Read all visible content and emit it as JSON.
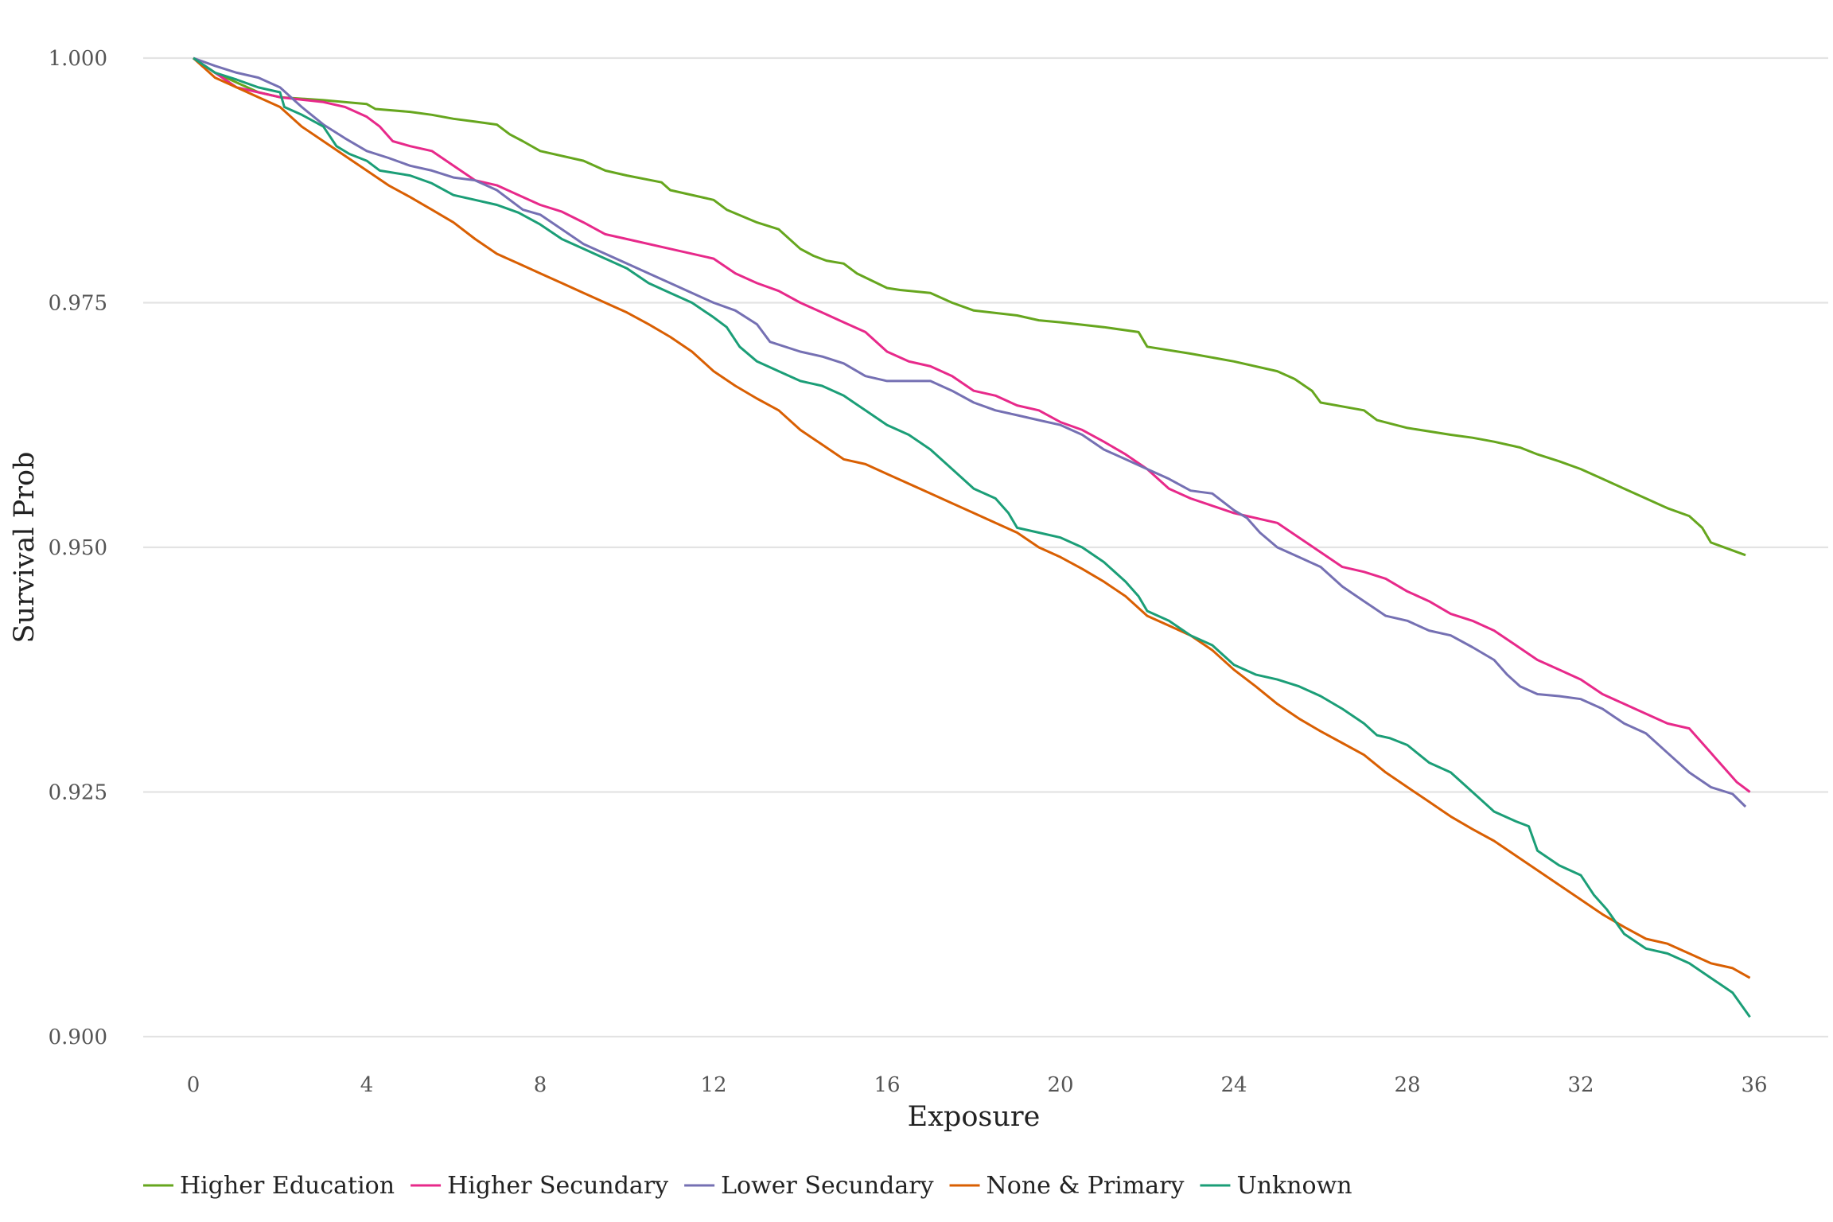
{
  "chart_data": {
    "type": "line",
    "xlabel": "Exposure",
    "ylabel": "Survival Prob",
    "xlim": [
      0,
      36
    ],
    "ylim": [
      0.9,
      1.0
    ],
    "x_ticks": [
      0,
      4,
      8,
      12,
      16,
      20,
      24,
      28,
      32,
      36
    ],
    "y_ticks": [
      0.9,
      0.925,
      0.95,
      0.975,
      1.0
    ],
    "x_tick_labels": [
      "0",
      "4",
      "8",
      "12",
      "16",
      "20",
      "24",
      "28",
      "32",
      "36"
    ],
    "y_tick_labels": [
      "0.900",
      "0.925",
      "0.950",
      "0.975",
      "1.000"
    ],
    "grid": "horizontal",
    "legend_position": "bottom-left",
    "series": [
      {
        "name": "Higher Education",
        "color": "#66a61e",
        "x": [
          0,
          0.5,
          1,
          1.5,
          2,
          3,
          4,
          4.2,
          5,
          5.5,
          6,
          6.5,
          7,
          7.3,
          7.6,
          8,
          9,
          9.5,
          10,
          10.8,
          11,
          12,
          12.3,
          13,
          13.5,
          14,
          14.3,
          14.6,
          15,
          15.3,
          16,
          16.3,
          17,
          17.5,
          18,
          19,
          19.5,
          20,
          21,
          21.8,
          22,
          23,
          24,
          25,
          25.4,
          25.8,
          26,
          27,
          27.3,
          28,
          29,
          29.5,
          30,
          30.6,
          31,
          31.5,
          32,
          32.5,
          33,
          33.5,
          34,
          34.5,
          34.8,
          35,
          35.8
        ],
        "y": [
          1.0,
          0.9985,
          0.9975,
          0.9965,
          0.996,
          0.9957,
          0.9953,
          0.9948,
          0.9945,
          0.9942,
          0.9938,
          0.9935,
          0.9932,
          0.9922,
          0.9915,
          0.9905,
          0.9895,
          0.9885,
          0.988,
          0.9873,
          0.9865,
          0.9855,
          0.9845,
          0.9832,
          0.9825,
          0.9805,
          0.9798,
          0.9793,
          0.979,
          0.978,
          0.9765,
          0.9763,
          0.976,
          0.975,
          0.9742,
          0.9737,
          0.9732,
          0.973,
          0.9725,
          0.972,
          0.9705,
          0.9698,
          0.969,
          0.968,
          0.9672,
          0.966,
          0.9648,
          0.964,
          0.963,
          0.9622,
          0.9615,
          0.9612,
          0.9608,
          0.9602,
          0.9595,
          0.9588,
          0.958,
          0.957,
          0.956,
          0.955,
          0.954,
          0.9532,
          0.952,
          0.9505,
          0.9492
        ]
      },
      {
        "name": "Higher Secundary",
        "color": "#e7298a",
        "x": [
          0,
          1,
          2,
          3,
          3.5,
          4,
          4.3,
          4.6,
          5,
          5.5,
          6,
          6.5,
          7,
          7.5,
          8,
          8.5,
          9,
          9.5,
          10,
          11,
          12,
          12.5,
          13,
          13.5,
          14,
          14.5,
          15,
          15.5,
          16,
          16.5,
          17,
          17.5,
          18,
          18.5,
          19,
          19.5,
          20,
          20.5,
          21,
          21.5,
          22,
          22.5,
          23,
          24,
          25,
          25.5,
          26,
          26.5,
          27,
          27.5,
          28,
          28.5,
          29,
          29.5,
          30,
          30.5,
          31,
          31.5,
          32,
          32.5,
          33,
          33.5,
          34,
          34.5,
          35,
          35.3,
          35.6,
          35.9
        ],
        "y": [
          1.0,
          0.997,
          0.996,
          0.9955,
          0.995,
          0.994,
          0.993,
          0.9915,
          0.991,
          0.9905,
          0.989,
          0.9875,
          0.987,
          0.986,
          0.985,
          0.9843,
          0.9832,
          0.982,
          0.9815,
          0.9805,
          0.9795,
          0.978,
          0.977,
          0.9762,
          0.975,
          0.974,
          0.973,
          0.972,
          0.97,
          0.969,
          0.9685,
          0.9675,
          0.966,
          0.9655,
          0.9645,
          0.964,
          0.9628,
          0.962,
          0.9608,
          0.9595,
          0.958,
          0.956,
          0.955,
          0.9535,
          0.9525,
          0.951,
          0.9495,
          0.948,
          0.9475,
          0.9468,
          0.9455,
          0.9445,
          0.9432,
          0.9425,
          0.9415,
          0.94,
          0.9385,
          0.9375,
          0.9365,
          0.935,
          0.934,
          0.933,
          0.932,
          0.9315,
          0.929,
          0.9275,
          0.926,
          0.925
        ]
      },
      {
        "name": "Lower Secundary",
        "color": "#7570b3",
        "x": [
          0,
          0.5,
          1,
          1.5,
          2,
          2.5,
          3,
          3.5,
          4,
          4.5,
          5,
          5.5,
          6,
          6.5,
          7,
          7.3,
          7.6,
          8,
          8.5,
          9,
          9.5,
          10,
          10.5,
          11,
          11.5,
          12,
          12.5,
          13,
          13.3,
          14,
          14.5,
          15,
          15.5,
          16,
          17,
          17.5,
          18,
          18.5,
          19,
          19.5,
          20,
          20.5,
          21,
          21.5,
          22,
          22.5,
          23,
          23.5,
          24,
          24.3,
          24.6,
          25,
          25.5,
          26,
          26.5,
          27,
          27.5,
          28,
          28.5,
          29,
          29.5,
          30,
          30.3,
          30.6,
          31,
          31.5,
          32,
          32.5,
          33,
          33.5,
          34,
          34.5,
          35,
          35.5,
          35.8
        ],
        "y": [
          1.0,
          0.9992,
          0.9985,
          0.998,
          0.997,
          0.995,
          0.9932,
          0.9918,
          0.9905,
          0.9898,
          0.989,
          0.9885,
          0.9878,
          0.9875,
          0.9865,
          0.9855,
          0.9845,
          0.984,
          0.9825,
          0.981,
          0.98,
          0.979,
          0.978,
          0.977,
          0.976,
          0.975,
          0.9742,
          0.9728,
          0.971,
          0.97,
          0.9695,
          0.9688,
          0.9675,
          0.967,
          0.967,
          0.966,
          0.9648,
          0.964,
          0.9635,
          0.963,
          0.9625,
          0.9615,
          0.96,
          0.959,
          0.958,
          0.957,
          0.9558,
          0.9555,
          0.9538,
          0.953,
          0.9515,
          0.95,
          0.949,
          0.948,
          0.946,
          0.9445,
          0.943,
          0.9425,
          0.9415,
          0.941,
          0.9398,
          0.9385,
          0.937,
          0.9358,
          0.935,
          0.9348,
          0.9345,
          0.9335,
          0.932,
          0.931,
          0.929,
          0.927,
          0.9255,
          0.9248,
          0.9235
        ]
      },
      {
        "name": "None & Primary",
        "color": "#d95f02",
        "x": [
          0,
          0.5,
          1,
          1.5,
          2,
          2.5,
          3,
          3.5,
          4,
          4.5,
          5,
          5.5,
          6,
          6.5,
          7,
          7.5,
          8,
          8.5,
          9,
          9.5,
          10,
          10.5,
          11,
          11.5,
          12,
          12.5,
          13,
          13.5,
          14,
          14.5,
          15,
          15.5,
          16,
          16.5,
          17,
          17.5,
          18,
          18.5,
          19,
          19.5,
          20,
          20.5,
          21,
          21.5,
          22,
          22.5,
          23,
          23.5,
          24,
          24.5,
          25,
          25.5,
          26,
          26.5,
          27,
          27.5,
          28,
          28.5,
          29,
          29.5,
          30,
          30.5,
          31,
          31.5,
          32,
          32.5,
          33,
          33.5,
          34,
          34.5,
          35,
          35.5,
          35.9
        ],
        "y": [
          1.0,
          0.998,
          0.997,
          0.996,
          0.995,
          0.993,
          0.9915,
          0.99,
          0.9885,
          0.987,
          0.9858,
          0.9845,
          0.9832,
          0.9815,
          0.98,
          0.979,
          0.978,
          0.977,
          0.976,
          0.975,
          0.974,
          0.9728,
          0.9715,
          0.97,
          0.968,
          0.9665,
          0.9652,
          0.964,
          0.962,
          0.9605,
          0.959,
          0.9585,
          0.9575,
          0.9565,
          0.9555,
          0.9545,
          0.9535,
          0.9525,
          0.9515,
          0.95,
          0.949,
          0.9478,
          0.9465,
          0.945,
          0.943,
          0.942,
          0.941,
          0.9395,
          0.9375,
          0.9358,
          0.934,
          0.9325,
          0.9312,
          0.93,
          0.9288,
          0.927,
          0.9255,
          0.924,
          0.9225,
          0.9212,
          0.92,
          0.9185,
          0.917,
          0.9155,
          0.914,
          0.9125,
          0.9112,
          0.91,
          0.9095,
          0.9085,
          0.9075,
          0.907,
          0.906
        ]
      },
      {
        "name": "Unknown",
        "color": "#1b9e77",
        "x": [
          0,
          0.5,
          1,
          1.5,
          2,
          2.1,
          2.5,
          3,
          3.3,
          3.6,
          4,
          4.3,
          5,
          5.5,
          6,
          6.5,
          7,
          7.5,
          8,
          8.5,
          9,
          9.5,
          10,
          10.5,
          11,
          11.5,
          12,
          12.3,
          12.6,
          13,
          13.5,
          14,
          14.5,
          15,
          15.5,
          16,
          16.5,
          17,
          17.5,
          18,
          18.5,
          18.8,
          19,
          19.5,
          20,
          20.5,
          21,
          21.5,
          21.8,
          22,
          22.5,
          23,
          23.5,
          24,
          24.5,
          25,
          25.5,
          26,
          26.5,
          27,
          27.3,
          27.6,
          28,
          28.5,
          29,
          29.5,
          30,
          30.5,
          30.8,
          31,
          31.5,
          32,
          32.3,
          32.6,
          33,
          33.5,
          34,
          34.5,
          35,
          35.5,
          35.9
        ],
        "y": [
          1.0,
          0.9985,
          0.9978,
          0.997,
          0.9965,
          0.995,
          0.9942,
          0.993,
          0.991,
          0.9902,
          0.9895,
          0.9885,
          0.988,
          0.9872,
          0.986,
          0.9855,
          0.985,
          0.9842,
          0.983,
          0.9815,
          0.9805,
          0.9795,
          0.9785,
          0.977,
          0.976,
          0.975,
          0.9735,
          0.9725,
          0.9705,
          0.969,
          0.968,
          0.967,
          0.9665,
          0.9655,
          0.964,
          0.9625,
          0.9615,
          0.96,
          0.958,
          0.956,
          0.955,
          0.9535,
          0.952,
          0.9515,
          0.951,
          0.95,
          0.9485,
          0.9465,
          0.945,
          0.9435,
          0.9425,
          0.941,
          0.94,
          0.938,
          0.937,
          0.9365,
          0.9358,
          0.9348,
          0.9335,
          0.932,
          0.9308,
          0.9305,
          0.9298,
          0.928,
          0.927,
          0.925,
          0.923,
          0.922,
          0.9215,
          0.919,
          0.9175,
          0.9165,
          0.9145,
          0.913,
          0.9105,
          0.909,
          0.9085,
          0.9075,
          0.906,
          0.9045,
          0.902
        ]
      }
    ]
  }
}
